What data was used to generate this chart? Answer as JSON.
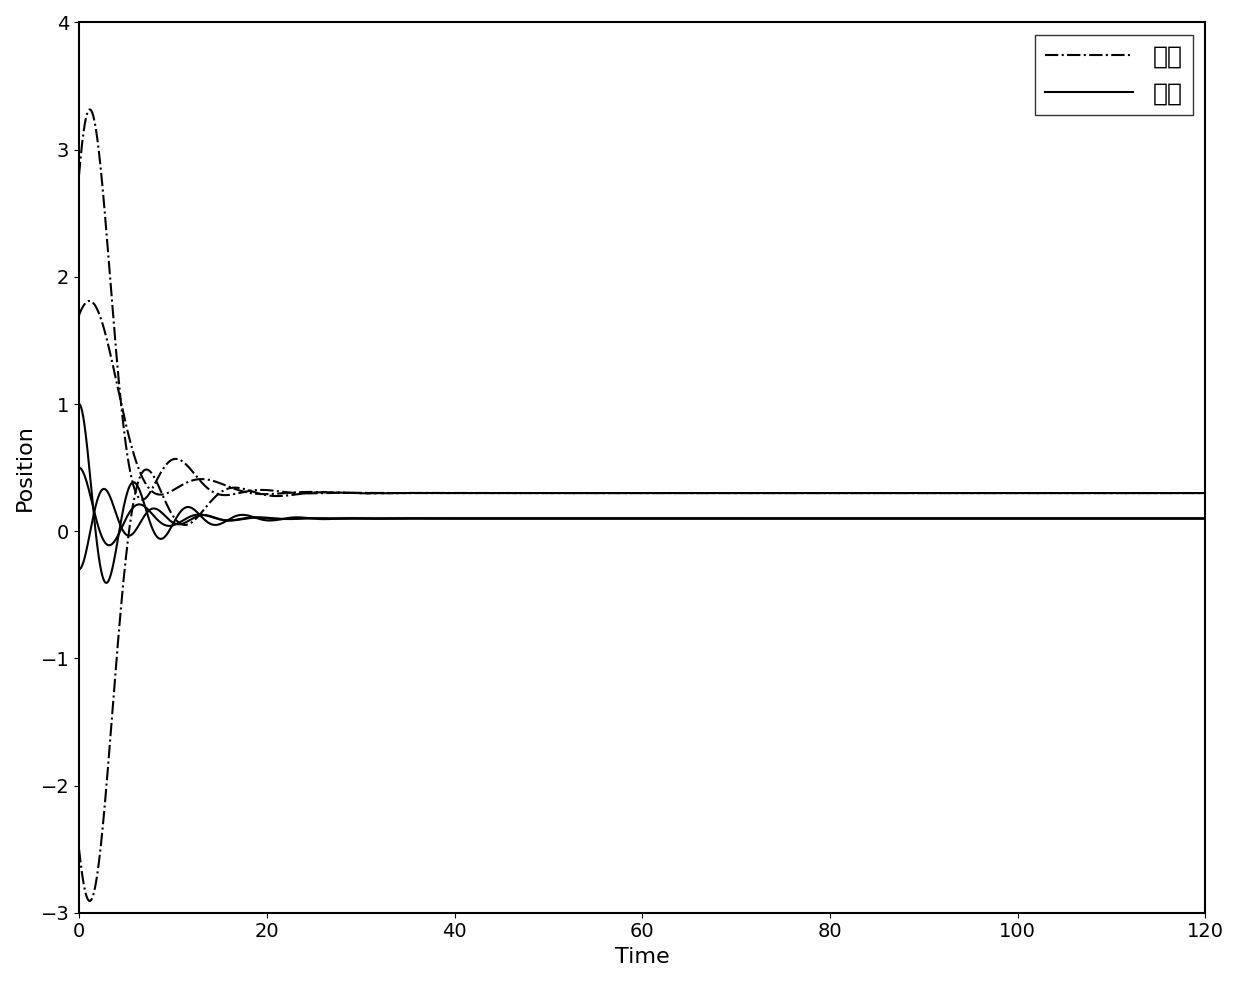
{
  "title": "",
  "xlabel": "Time",
  "ylabel": "Position",
  "xlim": [
    0,
    120
  ],
  "ylim": [
    -3,
    4
  ],
  "xticks": [
    0,
    20,
    40,
    60,
    80,
    100,
    120
  ],
  "yticks": [
    -3,
    -2,
    -1,
    0,
    1,
    2,
    3,
    4
  ],
  "legend_entries": [
    "一阶",
    "二阶"
  ],
  "line_color": "#000000",
  "background_color": "#ffffff",
  "figsize": [
    12.39,
    9.82
  ],
  "dpi": 100,
  "first_order_final": 0.3,
  "second_order_final": 0.1,
  "fo_params": [
    {
      "init": 2.8,
      "decay_tau": 3.5,
      "osc_freq": 0.7,
      "osc_tau": 4.0,
      "osc_amp": 0.9
    },
    {
      "init": 1.7,
      "decay_tau": 4.0,
      "osc_freq": 0.55,
      "osc_tau": 5.0,
      "osc_amp": 0.7
    },
    {
      "init": -2.5,
      "decay_tau": 3.2,
      "osc_freq": 0.65,
      "osc_tau": 4.5,
      "osc_amp": 0.85
    }
  ],
  "so_params": [
    {
      "init": 1.0,
      "omega": 1.1,
      "zeta": 0.18
    },
    {
      "init": 0.5,
      "omega": 1.0,
      "zeta": 0.2
    },
    {
      "init": -0.3,
      "omega": 1.2,
      "zeta": 0.17
    }
  ]
}
